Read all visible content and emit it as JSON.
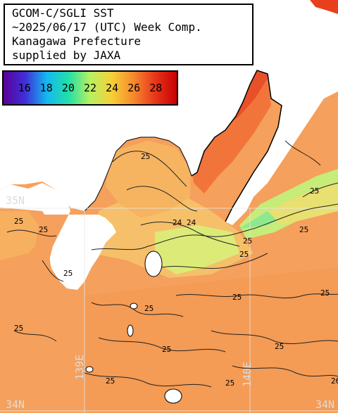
{
  "title": {
    "lines": [
      "GCOM-C/SGLI SST",
      "~2025/06/17 (UTC) Week Comp.",
      "Kanagawa Prefecture",
      "supplied by JAXA"
    ]
  },
  "colorbar": {
    "tick_labels": [
      "16",
      "18",
      "20",
      "22",
      "24",
      "26",
      "28"
    ],
    "colors": [
      "#5b0098",
      "#3f2fd8",
      "#14b8f0",
      "#22e0a8",
      "#b8f060",
      "#f6d038",
      "#f68a2c",
      "#e8361c",
      "#c80000"
    ]
  },
  "grid_labels": {
    "lat_35": "35N",
    "lat_34_left": "34N",
    "lat_34_right": "34N",
    "lon_139": "139E",
    "lon_140": "140E"
  },
  "contour_labels": [
    "25",
    "25",
    "25",
    "24",
    "24",
    "25",
    "25",
    "25",
    "25",
    "25",
    "25",
    "25",
    "25",
    "25",
    "25",
    "25",
    "25",
    "25",
    "26"
  ],
  "colors": {
    "land": "#ffffff",
    "sea_warm": "#f6a05a",
    "sea_hot": "#e8502a",
    "sea_cool": "#a8e88a",
    "sea_mid": "#f6c870"
  }
}
